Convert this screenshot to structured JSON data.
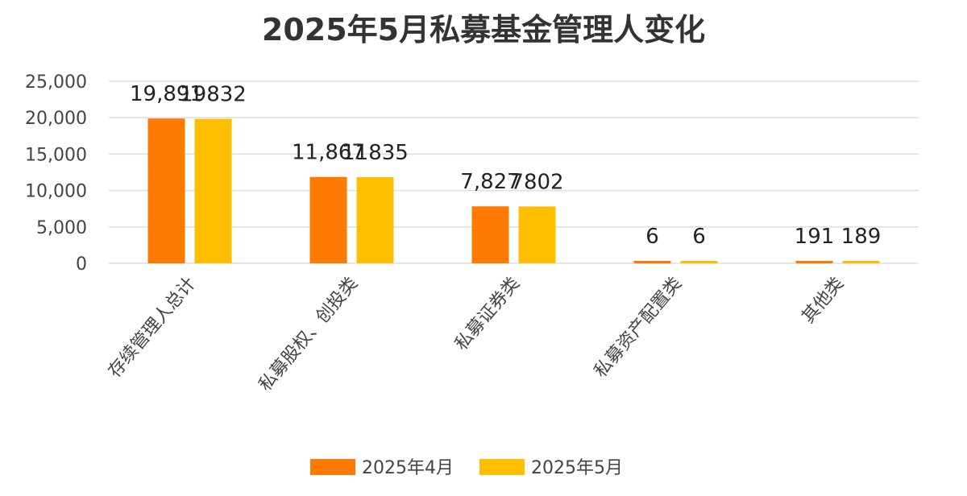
{
  "chart_data": {
    "type": "bar",
    "title": "2025年5月私募基金管理人变化",
    "categories": [
      "存续管理人总计",
      "私募股权、创投类",
      "私募证券类",
      "私募资产配置类",
      "其他类"
    ],
    "series": [
      {
        "name": "2025年4月",
        "values": [
          19891,
          11867,
          7827,
          6,
          191
        ],
        "value_labels": [
          "19,891",
          "11,867",
          "7,827",
          "6",
          "191"
        ],
        "color": "#FF7A00"
      },
      {
        "name": "2025年5月",
        "values": [
          19832,
          11835,
          7802,
          6,
          189
        ],
        "value_labels": [
          "19832",
          "11835",
          "7802",
          "6",
          "189"
        ],
        "color": "#FFBF00"
      }
    ],
    "ylim": [
      0,
      25000
    ],
    "yticks": [
      0,
      5000,
      10000,
      15000,
      20000,
      25000
    ],
    "ytick_labels": [
      "0",
      "5,000",
      "10,000",
      "15,000",
      "20,000",
      "25,000"
    ],
    "grid": true,
    "legend": "bottom",
    "xlabel": "",
    "ylabel": ""
  }
}
